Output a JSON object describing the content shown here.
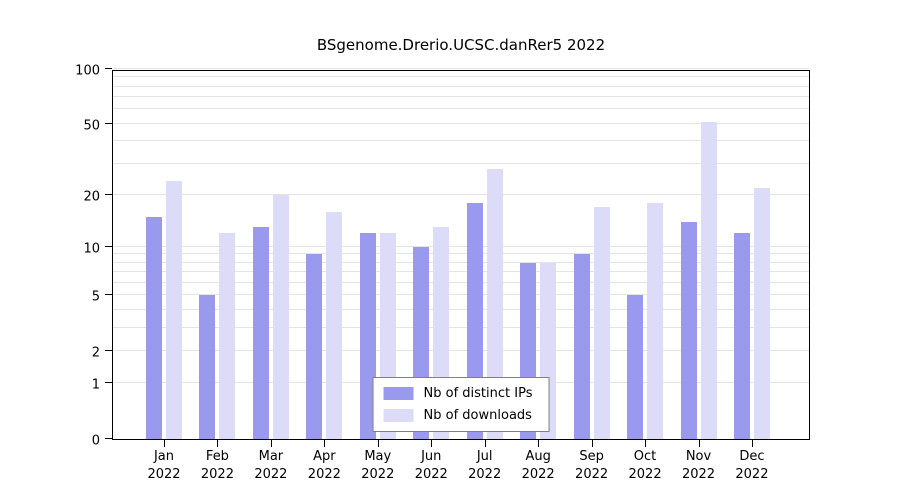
{
  "chart_data": {
    "type": "bar",
    "title": "BSgenome.Drerio.UCSC.danRer5 2022",
    "year": "2022",
    "categories": [
      "Jan",
      "Feb",
      "Mar",
      "Apr",
      "May",
      "Jun",
      "Jul",
      "Aug",
      "Sep",
      "Oct",
      "Nov",
      "Dec"
    ],
    "series": [
      {
        "name": "Nb of distinct IPs",
        "color": "#9999ee",
        "values": [
          15,
          5,
          13,
          9,
          12,
          10,
          18,
          8,
          9,
          5,
          14,
          12
        ]
      },
      {
        "name": "Nb of downloads",
        "color": "#dcdcf8",
        "values": [
          24,
          12,
          20,
          16,
          12,
          13,
          28,
          8,
          17,
          18,
          51,
          22
        ]
      }
    ],
    "y_axis": {
      "scale": "log1p",
      "max": 100,
      "ticks": [
        100,
        50,
        20,
        10,
        5,
        2,
        1,
        0
      ],
      "minor_gridlines": [
        1,
        2,
        3,
        4,
        5,
        6,
        7,
        8,
        9,
        10,
        20,
        30,
        40,
        50,
        60,
        70,
        80,
        90,
        100
      ]
    },
    "legend": {
      "position": "bottom-center"
    },
    "grid": true,
    "xlabel": "",
    "ylabel": ""
  }
}
